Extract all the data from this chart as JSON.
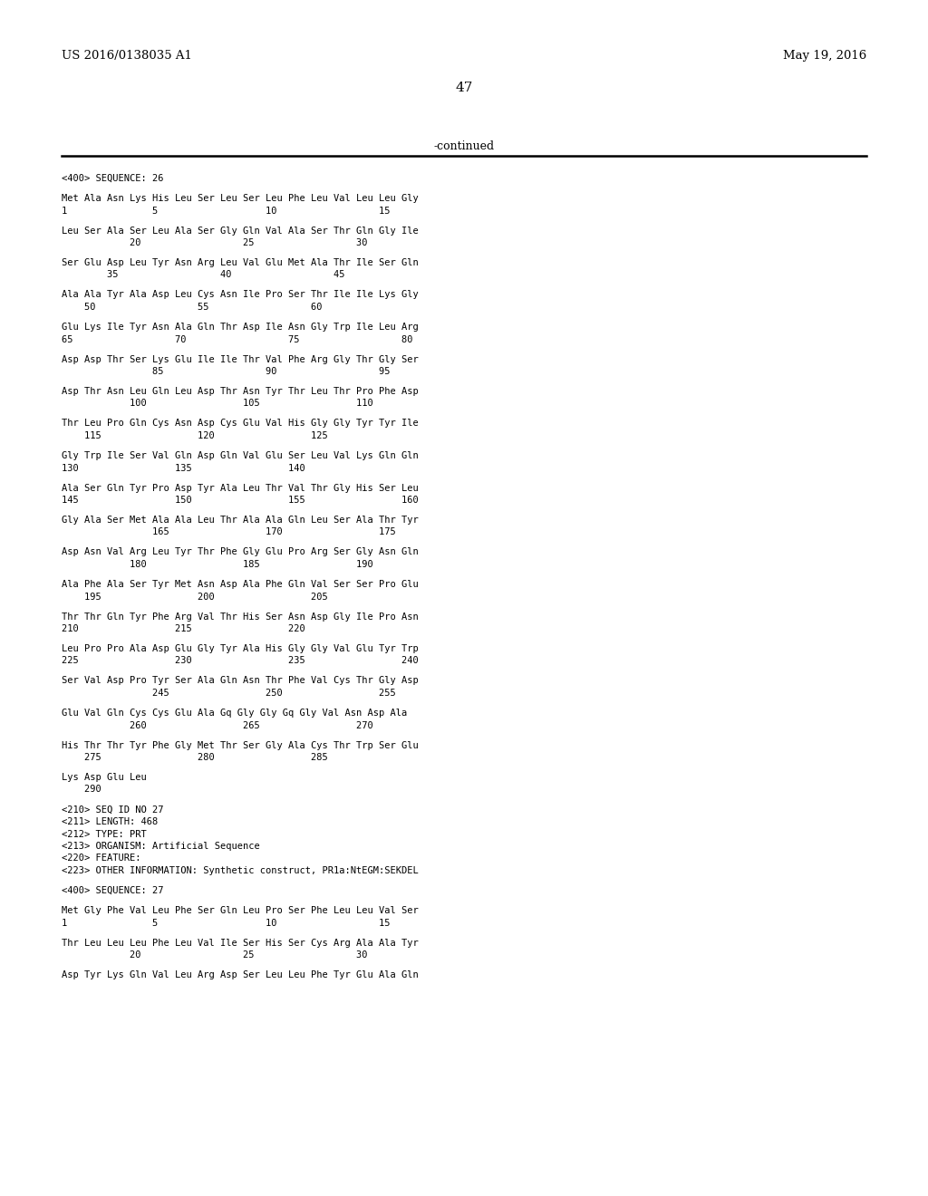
{
  "header_left": "US 2016/0138035 A1",
  "header_right": "May 19, 2016",
  "page_number": "47",
  "continued_text": "-continued",
  "background_color": "#ffffff",
  "text_color": "#000000",
  "sequence_lines": [
    "<400> SEQUENCE: 26",
    "",
    "Met Ala Asn Lys His Leu Ser Leu Ser Leu Phe Leu Val Leu Leu Gly",
    "1               5                   10                  15",
    "",
    "Leu Ser Ala Ser Leu Ala Ser Gly Gln Val Ala Ser Thr Gln Gly Ile",
    "            20                  25                  30",
    "",
    "Ser Glu Asp Leu Tyr Asn Arg Leu Val Glu Met Ala Thr Ile Ser Gln",
    "        35                  40                  45",
    "",
    "Ala Ala Tyr Ala Asp Leu Cys Asn Ile Pro Ser Thr Ile Ile Lys Gly",
    "    50                  55                  60",
    "",
    "Glu Lys Ile Tyr Asn Ala Gln Thr Asp Ile Asn Gly Trp Ile Leu Arg",
    "65                  70                  75                  80",
    "",
    "Asp Asp Thr Ser Lys Glu Ile Ile Thr Val Phe Arg Gly Thr Gly Ser",
    "                85                  90                  95",
    "",
    "Asp Thr Asn Leu Gln Leu Asp Thr Asn Tyr Thr Leu Thr Pro Phe Asp",
    "            100                 105                 110",
    "",
    "Thr Leu Pro Gln Cys Asn Asp Cys Glu Val His Gly Gly Tyr Tyr Ile",
    "    115                 120                 125",
    "",
    "Gly Trp Ile Ser Val Gln Asp Gln Val Glu Ser Leu Val Lys Gln Gln",
    "130                 135                 140",
    "",
    "Ala Ser Gln Tyr Pro Asp Tyr Ala Leu Thr Val Thr Gly His Ser Leu",
    "145                 150                 155                 160",
    "",
    "Gly Ala Ser Met Ala Ala Leu Thr Ala Ala Gln Leu Ser Ala Thr Tyr",
    "                165                 170                 175",
    "",
    "Asp Asn Val Arg Leu Tyr Thr Phe Gly Glu Pro Arg Ser Gly Asn Gln",
    "            180                 185                 190",
    "",
    "Ala Phe Ala Ser Tyr Met Asn Asp Ala Phe Gln Val Ser Ser Pro Glu",
    "    195                 200                 205",
    "",
    "Thr Thr Gln Tyr Phe Arg Val Thr His Ser Asn Asp Gly Ile Pro Asn",
    "210                 215                 220",
    "",
    "Leu Pro Pro Ala Asp Glu Gly Tyr Ala His Gly Gly Val Glu Tyr Trp",
    "225                 230                 235                 240",
    "",
    "Ser Val Asp Pro Tyr Ser Ala Gln Asn Thr Phe Val Cys Thr Gly Asp",
    "                245                 250                 255",
    "",
    "Glu Val Gln Cys Cys Glu Ala Gq Gly Gly Gq Gly Val Asn Asp Ala",
    "            260                 265                 270",
    "",
    "His Thr Thr Tyr Phe Gly Met Thr Ser Gly Ala Cys Thr Trp Ser Glu",
    "    275                 280                 285",
    "",
    "Lys Asp Glu Leu",
    "    290",
    "",
    "<210> SEQ ID NO 27",
    "<211> LENGTH: 468",
    "<212> TYPE: PRT",
    "<213> ORGANISM: Artificial Sequence",
    "<220> FEATURE:",
    "<223> OTHER INFORMATION: Synthetic construct, PR1a:NtEGM:SEKDEL",
    "",
    "<400> SEQUENCE: 27",
    "",
    "Met Gly Phe Val Leu Phe Ser Gln Leu Pro Ser Phe Leu Leu Val Ser",
    "1               5                   10                  15",
    "",
    "Thr Leu Leu Leu Phe Leu Val Ile Ser His Ser Cys Arg Ala Ala Tyr",
    "            20                  25                  30",
    "",
    "Asp Tyr Lys Gln Val Leu Arg Asp Ser Leu Leu Phe Tyr Glu Ala Gln"
  ]
}
